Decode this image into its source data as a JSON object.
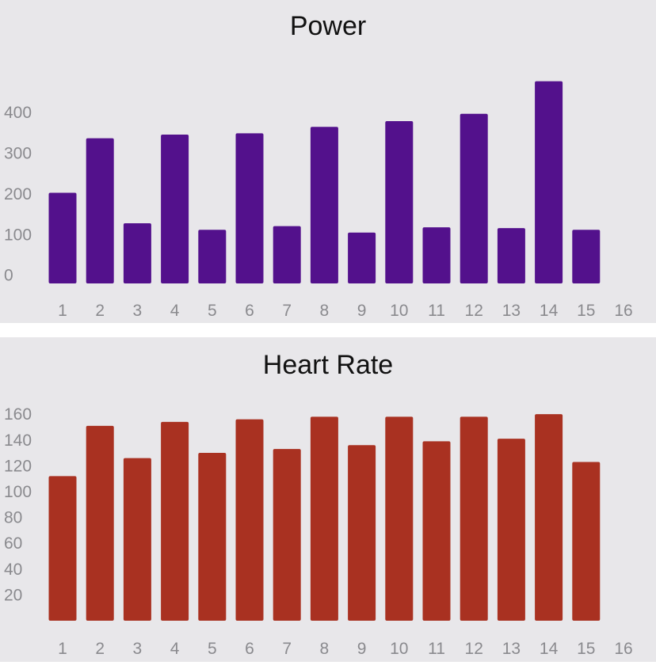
{
  "chart_data": [
    {
      "type": "bar",
      "title": "Power",
      "color": "#53118c",
      "categories": [
        "1",
        "2",
        "3",
        "4",
        "5",
        "6",
        "7",
        "8",
        "9",
        "10",
        "11",
        "12",
        "13",
        "14",
        "15",
        "16"
      ],
      "values": [
        203,
        337,
        128,
        346,
        112,
        349,
        121,
        365,
        105,
        379,
        118,
        397,
        116,
        477,
        112,
        null
      ],
      "yticks": [
        0,
        100,
        200,
        300,
        400
      ],
      "ylim": [
        -20,
        490
      ],
      "grid": false,
      "legend": "none"
    },
    {
      "type": "bar",
      "title": "Heart Rate",
      "color": "#a93121",
      "categories": [
        "1",
        "2",
        "3",
        "4",
        "5",
        "6",
        "7",
        "8",
        "9",
        "10",
        "11",
        "12",
        "13",
        "14",
        "15",
        "16"
      ],
      "values": [
        112,
        151,
        126,
        154,
        130,
        156,
        133,
        158,
        136,
        158,
        139,
        158,
        141,
        160,
        123,
        null
      ],
      "yticks": [
        20,
        40,
        60,
        80,
        100,
        120,
        140,
        160
      ],
      "ylim": [
        0,
        165
      ],
      "grid": false,
      "legend": "none"
    }
  ]
}
